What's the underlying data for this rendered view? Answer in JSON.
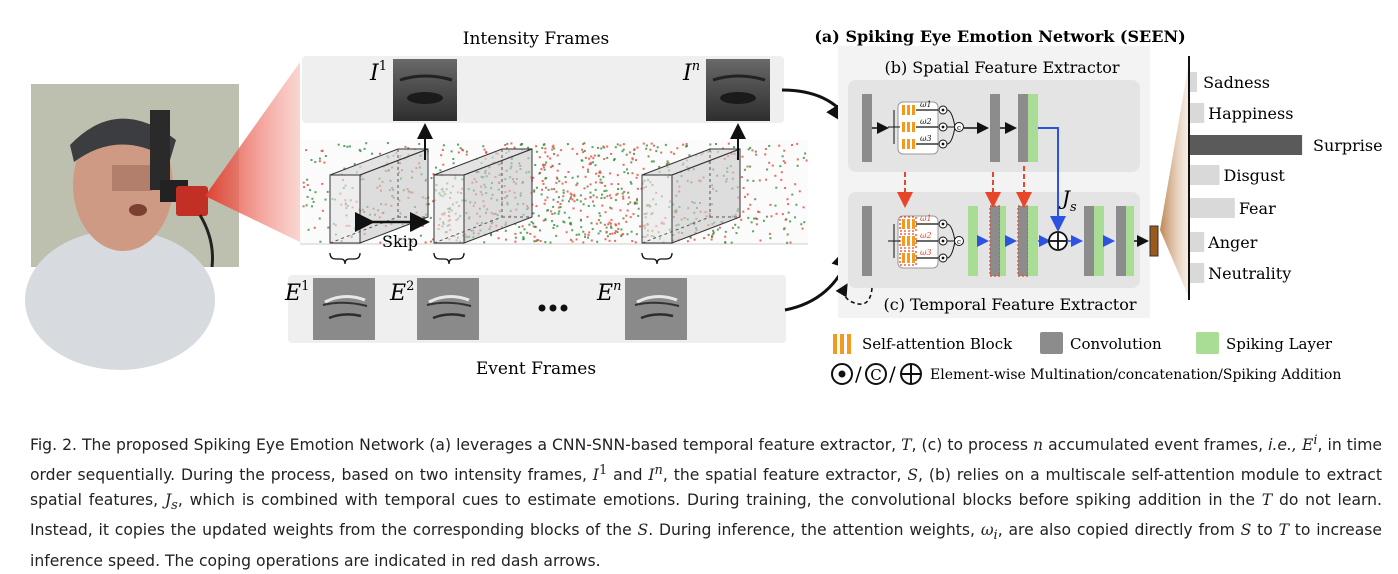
{
  "figure": {
    "intensity_title": "Intensity Frames",
    "event_title": "Event Frames",
    "intensity_labels": [
      {
        "base": "I",
        "sup": "1"
      },
      {
        "base": "I",
        "sup": "n"
      }
    ],
    "event_labels": [
      {
        "base": "E",
        "sup": "1"
      },
      {
        "base": "E",
        "sup": "2"
      },
      {
        "base": "E",
        "sup": "n"
      }
    ],
    "skip_label": "Skip",
    "seen_title": "(a) Spiking Eye Emotion Network (SEEN)",
    "spatial_title": "(b) Spatial Feature Extractor",
    "temporal_title": "(c) Temporal Feature Extractor",
    "js_label": {
      "base": "J",
      "sub": "s"
    },
    "weight_labels": [
      "ω1",
      "ω2",
      "ω3"
    ],
    "emotions": [
      {
        "label": "Sadness",
        "value": 0.06
      },
      {
        "label": "Happiness",
        "value": 0.12
      },
      {
        "label": "Surprise",
        "value": 0.95
      },
      {
        "label": "Disgust",
        "value": 0.25
      },
      {
        "label": "Fear",
        "value": 0.38
      },
      {
        "label": "Anger",
        "value": 0.12
      },
      {
        "label": "Neutrality",
        "value": 0.12
      }
    ],
    "legend": {
      "attention": "Self-attention Block",
      "conv": "Convolution",
      "spiking": "Spiking Layer",
      "ops": "Element-wise Multination/concatenation/Spiking Addition"
    },
    "colors": {
      "attention_orange": "#f39b21",
      "conv_gray": "#8c8c8c",
      "spiking_green": "#a9dc95",
      "copy_red": "#e8462a",
      "flow_blue": "#2b52e0",
      "bar_dark": "#5a5a5a",
      "bar_light": "#d9d9d9",
      "output_brown": "#9a5a1c"
    }
  },
  "caption": {
    "p1": "Fig. 2.  The proposed Spiking Eye Emotion Network (a) leverages a CNN-SNN-based temporal feature extractor, ",
    "T": "T",
    "p2": ", (c) to process ",
    "n": "n",
    "p3": " accumulated event frames, ",
    "ie": "i.e.,",
    "Ei": "E",
    "Ei_sup": "i",
    "p4": ", in time order sequentially. During the process, based on two intensity frames, ",
    "I1": "I",
    "I1_sup": "1",
    "p5": " and ",
    "In": "I",
    "In_sup": "n",
    "p6": ", the spatial feature extractor, ",
    "S": "S",
    "p7": ", (b) relies on a multiscale self-attention module to extract spatial features, ",
    "Js": "J",
    "Js_sub": "s",
    "p8": ", which is combined with temporal cues to estimate emotions. During training, the convolutional blocks before spiking addition in the ",
    "T2": "T",
    "p9": " do not learn. Instead, it copies the updated weights from the corresponding blocks of the ",
    "S2": "S",
    "p10": ". During inference, the attention weights, ",
    "wi": "ω",
    "wi_sub": "i",
    "p11": ", are also copied directly from ",
    "S3": "S",
    "p12": " to ",
    "T3": "T",
    "p13": " to increase inference speed. The coping operations are indicated in red dash arrows."
  }
}
